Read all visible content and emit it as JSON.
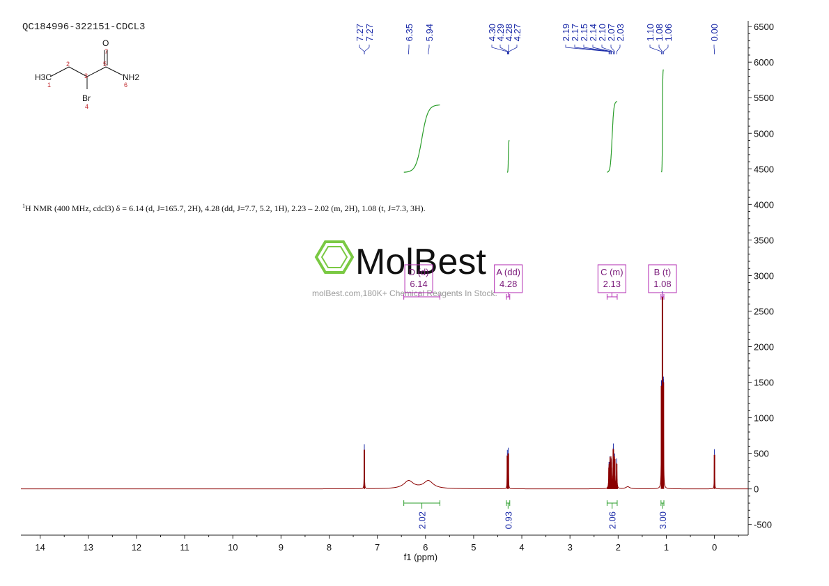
{
  "sample_id": "QC184996-322151-CDCL3",
  "nmr_summary": {
    "prefix_sup": "1",
    "text": "H NMR (400 MHz, cdcl3) δ = 6.14 (d, J=165.7, 2H), 4.28 (dd, J=7.7, 5.2, 1H), 2.23 – 2.02 (m, 2H), 1.08 (t, J=7.3, 3H)."
  },
  "molecule": {
    "atoms": [
      {
        "label": "H3C",
        "num": "1"
      },
      {
        "label": "",
        "num": "2"
      },
      {
        "label": "",
        "num": "3"
      },
      {
        "label": "Br",
        "num": "4"
      },
      {
        "label": "",
        "num": "5"
      },
      {
        "label": "NH2",
        "num": "6"
      },
      {
        "label": "O",
        "num": "7"
      }
    ]
  },
  "watermark": {
    "logo_text": "MolBest",
    "tagline": "molBest.com,180K+ Chemical Reagents In Stock."
  },
  "colors": {
    "spectrum": "#8b0000",
    "peak_labels": "#1a2aa8",
    "integral_curve": "#2a9d2a",
    "multiplet_box": "#b22ab2",
    "axis": "#222222",
    "logo_green": "#7ac943"
  },
  "chart_data": {
    "type": "line",
    "xlabel": "f1 (ppm)",
    "ylabel": "",
    "xlim": [
      14.4,
      -0.7
    ],
    "ylim": [
      -650,
      6580
    ],
    "x_ticks": [
      14,
      13,
      12,
      11,
      10,
      9,
      8,
      7,
      6,
      5,
      4,
      3,
      2,
      1,
      0
    ],
    "y_ticks": [
      -500,
      0,
      500,
      1000,
      1500,
      2000,
      2500,
      3000,
      3500,
      4000,
      4500,
      5000,
      5500,
      6000,
      6500
    ],
    "y_tick_labels": [
      "-500",
      "0",
      "500",
      "1000",
      "1500",
      "2000",
      "2500",
      "3000",
      "3500",
      "4000",
      "4500",
      "5000",
      "5500",
      "6000",
      "6500"
    ],
    "peak_labels": [
      "7.27",
      "7.27",
      "6.35",
      "5.94",
      "4.30",
      "4.29",
      "4.28",
      "4.27",
      "2.19",
      "2.17",
      "2.15",
      "2.14",
      "2.10",
      "2.07",
      "2.03",
      "1.10",
      "1.08",
      "1.06",
      "0.00"
    ],
    "spectrum_peaks": [
      {
        "ppm": 7.27,
        "height": 550,
        "width": 0.004
      },
      {
        "ppm": 6.35,
        "height": 110,
        "width": 0.12
      },
      {
        "ppm": 5.94,
        "height": 110,
        "width": 0.12
      },
      {
        "ppm": 4.3,
        "height": 470,
        "width": 0.004
      },
      {
        "ppm": 4.28,
        "height": 500,
        "width": 0.004
      },
      {
        "ppm": 2.19,
        "height": 300,
        "width": 0.006
      },
      {
        "ppm": 2.17,
        "height": 380,
        "width": 0.006
      },
      {
        "ppm": 2.15,
        "height": 330,
        "width": 0.006
      },
      {
        "ppm": 2.14,
        "height": 300,
        "width": 0.006
      },
      {
        "ppm": 2.1,
        "height": 560,
        "width": 0.006
      },
      {
        "ppm": 2.07,
        "height": 420,
        "width": 0.006
      },
      {
        "ppm": 2.03,
        "height": 350,
        "width": 0.006
      },
      {
        "ppm": 1.8,
        "height": 30,
        "width": 0.05
      },
      {
        "ppm": 1.1,
        "height": 1450,
        "width": 0.004
      },
      {
        "ppm": 1.08,
        "height": 2700,
        "width": 0.004
      },
      {
        "ppm": 1.06,
        "height": 1500,
        "width": 0.004
      },
      {
        "ppm": 0.0,
        "height": 480,
        "width": 0.004
      }
    ],
    "multiplets": [
      {
        "label": "D (d)",
        "shift": "6.14",
        "range": [
          6.45,
          5.7
        ]
      },
      {
        "label": "A (dd)",
        "shift": "4.28",
        "range": [
          4.32,
          4.25
        ]
      },
      {
        "label": "C (m)",
        "shift": "2.13",
        "range": [
          2.23,
          2.02
        ]
      },
      {
        "label": "B (t)",
        "shift": "1.08",
        "range": [
          1.11,
          1.05
        ]
      }
    ],
    "integrals": [
      {
        "value": "2.02",
        "range": [
          6.45,
          5.7
        ]
      },
      {
        "value": "0.93",
        "range": [
          4.32,
          4.25
        ]
      },
      {
        "value": "2.06",
        "range": [
          2.23,
          2.02
        ]
      },
      {
        "value": "3.00",
        "range": [
          1.11,
          1.05
        ]
      }
    ]
  }
}
